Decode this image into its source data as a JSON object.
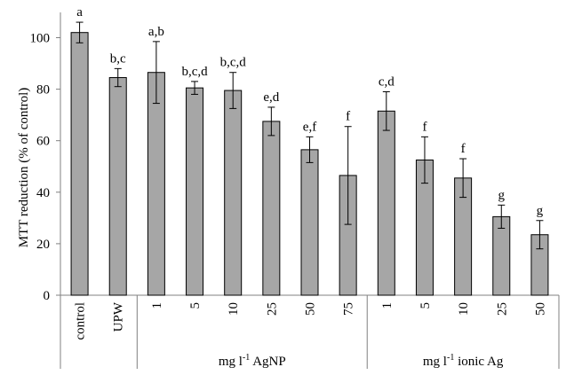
{
  "chart_data": {
    "type": "bar",
    "ylabel": "MTT reduction (% of control)",
    "ylim": [
      0,
      110
    ],
    "yticks": [
      0,
      20,
      40,
      60,
      80,
      100
    ],
    "grid": false,
    "categories": [
      "control",
      "UPW",
      "1",
      "5",
      "10",
      "25",
      "50",
      "75",
      "1",
      "5",
      "10",
      "25",
      "50"
    ],
    "values": [
      102,
      84.5,
      86.5,
      80.5,
      79.5,
      67.5,
      56.5,
      46.5,
      71.5,
      52.5,
      45.5,
      30.5,
      23.5
    ],
    "errors": [
      4,
      3.5,
      12,
      2.5,
      7,
      5.5,
      5,
      19,
      7.5,
      9,
      7.5,
      4.5,
      5.5
    ],
    "significance": [
      "a",
      "b,c",
      "a,b",
      "b,c,d",
      "b,c,d",
      "e,d",
      "e,f",
      "f",
      "c,d",
      "f",
      "f",
      "g",
      "g"
    ],
    "groups": [
      {
        "label": "",
        "start": 0,
        "end": 1
      },
      {
        "label": "mg l-1 AgNP",
        "start": 2,
        "end": 7
      },
      {
        "label": "mg l-1 ionic Ag",
        "start": 8,
        "end": 12
      }
    ]
  }
}
